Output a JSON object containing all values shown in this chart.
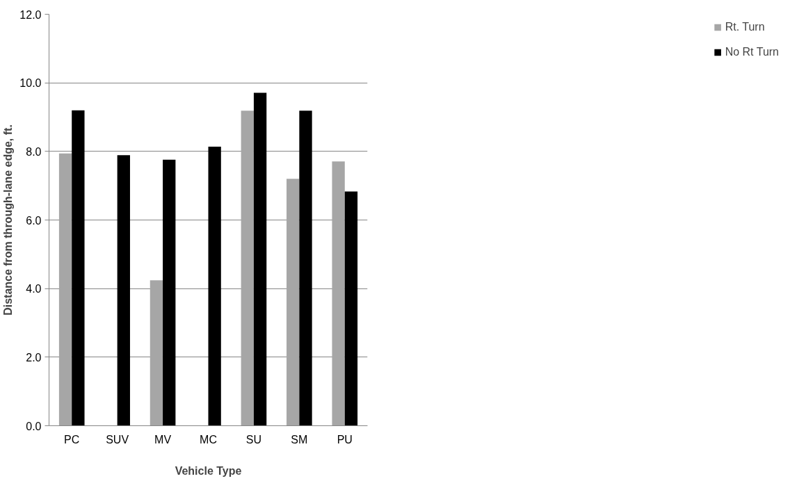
{
  "chart_data": {
    "type": "bar",
    "xlabel": "Vehicle Type",
    "ylabel": "Distance from through-lane edge, ft.",
    "categories": [
      "PC",
      "SUV",
      "MV",
      "MC",
      "SU",
      "SM",
      "PU"
    ],
    "series": [
      {
        "name": "Rt. Turn",
        "color": "#a6a6a6",
        "values": [
          7.94,
          null,
          4.24,
          null,
          9.19,
          7.2,
          7.71
        ]
      },
      {
        "name": "No Rt Turn",
        "color": "#000000",
        "values": [
          9.2,
          7.89,
          7.76,
          8.14,
          9.71,
          9.19,
          6.83
        ]
      }
    ],
    "ylim": [
      0,
      12
    ],
    "yticks": [
      {
        "value": 0,
        "label": "0.0"
      },
      {
        "value": 2,
        "label": "2.0"
      },
      {
        "value": 4,
        "label": "4.0"
      },
      {
        "value": 6,
        "label": "6.0"
      },
      {
        "value": 8,
        "label": "8.0"
      },
      {
        "value": 10,
        "label": "10.0"
      },
      {
        "value": 12,
        "label": "12.0"
      }
    ],
    "grid": "y",
    "legend": "right"
  }
}
